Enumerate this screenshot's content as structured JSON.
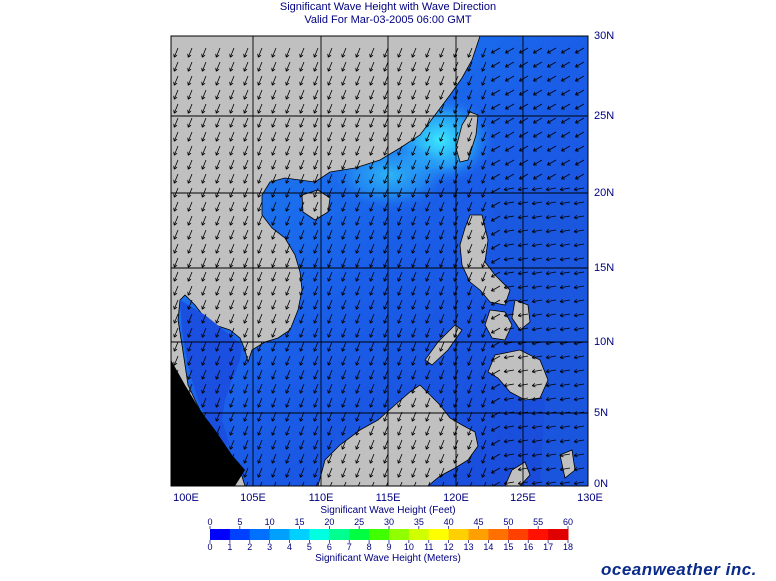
{
  "header": {
    "title": "Significant Wave Height with Wave Direction",
    "valid": "Valid For Mar-03-2005 06:00 GMT"
  },
  "map": {
    "lon_labels": [
      "100E",
      "105E",
      "110E",
      "115E",
      "120E",
      "125E",
      "130E"
    ],
    "lat_labels": [
      "30N",
      "25N",
      "20N",
      "15N",
      "10N",
      "5N",
      "0N"
    ],
    "colors": {
      "land": "#c0c0c0",
      "deep": "#1a4fe0",
      "mid": "#1c6ff0",
      "high": "#2ad3ff",
      "grid": "#000000"
    }
  },
  "legend": {
    "feet_caption": "Significant Wave Height (Feet)",
    "feet_ticks": [
      "0",
      "5",
      "10",
      "15",
      "20",
      "25",
      "30",
      "35",
      "40",
      "45",
      "50",
      "55",
      "60"
    ],
    "meters_caption": "Significant Wave Height (Meters)",
    "meters_ticks": [
      "0",
      "1",
      "2",
      "3",
      "4",
      "5",
      "6",
      "7",
      "8",
      "9",
      "10",
      "11",
      "12",
      "13",
      "14",
      "15",
      "16",
      "17",
      "18"
    ],
    "colors": [
      "#0000ff",
      "#0040ff",
      "#0070ff",
      "#00a0ff",
      "#00d0ff",
      "#00ffe0",
      "#00ff90",
      "#00ff40",
      "#40ff00",
      "#90ff00",
      "#d0ff00",
      "#ffff00",
      "#ffd000",
      "#ffa000",
      "#ff7000",
      "#ff4000",
      "#ff1000",
      "#e00000"
    ]
  },
  "brand": "oceanweather inc."
}
